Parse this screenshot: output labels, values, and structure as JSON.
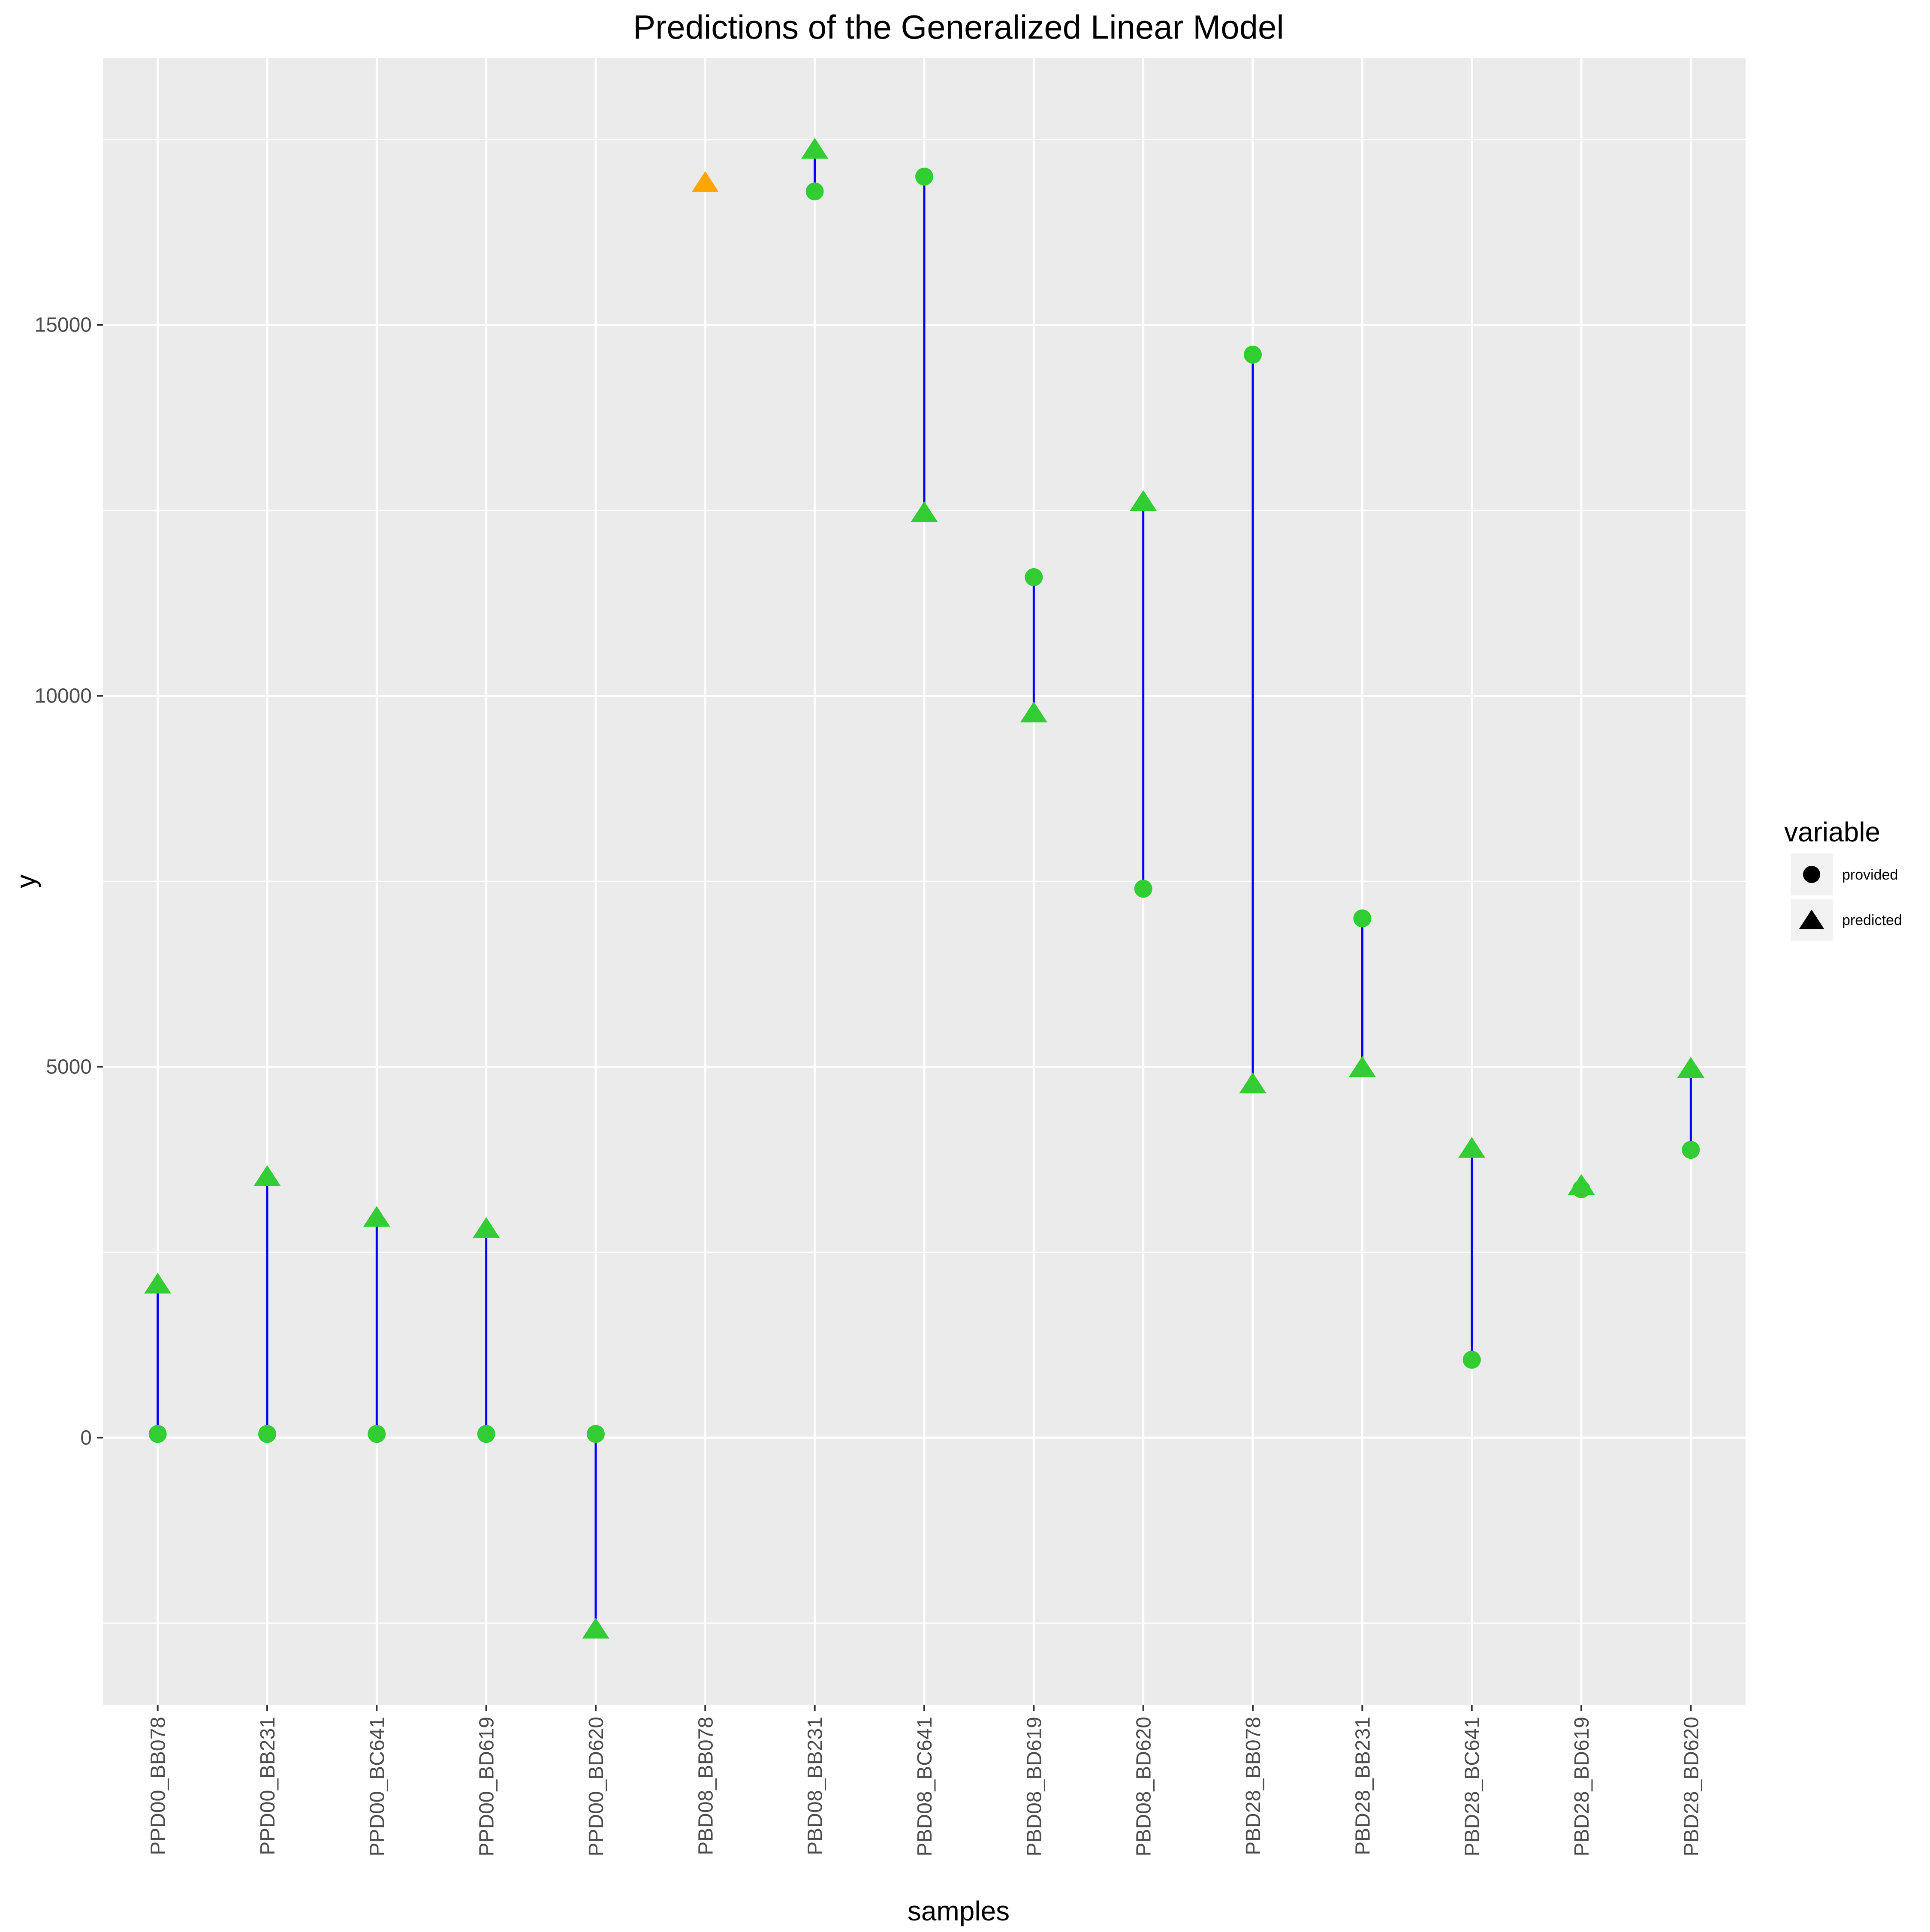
{
  "chart_data": {
    "type": "scatter",
    "title": "Predictions of the Generalized Linear Model",
    "xlabel": "samples",
    "ylabel": "y",
    "categories": [
      "PPD00_BB078",
      "PPD00_BB231",
      "PPD00_BC641",
      "PPD00_BD619",
      "PPD00_BD620",
      "PBD08_BB078",
      "PBD08_BB231",
      "PBD08_BC641",
      "PBD08_BD619",
      "PBD08_BD620",
      "PBD28_BB078",
      "PBD28_BB231",
      "PBD28_BC641",
      "PBD28_BD619",
      "PBD28_BD620"
    ],
    "ylim": [
      -3600,
      18600
    ],
    "y_ticks": [
      0,
      5000,
      10000,
      15000
    ],
    "y_tick_labels": [
      "0",
      "5000",
      "10000",
      "15000"
    ],
    "grid": true,
    "series": [
      {
        "name": "provided",
        "shape": "circle",
        "values": [
          50,
          50,
          50,
          50,
          50,
          null,
          16800,
          17000,
          11600,
          7400,
          14600,
          7000,
          1050,
          3350,
          3880
        ]
      },
      {
        "name": "predicted",
        "shape": "triangle",
        "values": [
          2050,
          3500,
          2950,
          2800,
          -2600,
          16900,
          17350,
          12450,
          9750,
          12600,
          4750,
          4970,
          3880,
          3380,
          4960
        ]
      }
    ],
    "point_colors": {
      "default": "#32CD32",
      "highlight": "#FFA500",
      "highlight_categories": [
        "PBD08_BB078"
      ]
    },
    "segment_color": "#0000FF",
    "legend": {
      "title": "variable",
      "position": "right",
      "entries": [
        {
          "label": "provided",
          "shape": "circle"
        },
        {
          "label": "predicted",
          "shape": "triangle"
        }
      ]
    },
    "colors": {
      "panel_background": "#EBEBEB",
      "grid_major": "#FFFFFF",
      "legend_key_background": "#F2F2F2"
    }
  }
}
